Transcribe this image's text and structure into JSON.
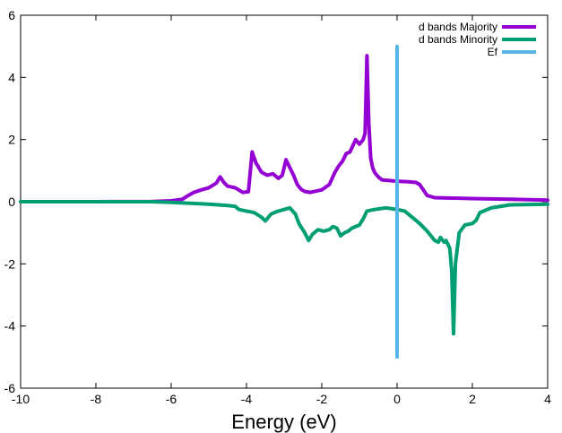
{
  "chart_data": {
    "type": "line",
    "title": "",
    "xlabel": "Energy (eV)",
    "ylabel": "",
    "xlim": [
      -10,
      4
    ],
    "ylim": [
      -6,
      6
    ],
    "x_ticks": [
      -10,
      -8,
      -6,
      -4,
      -2,
      0,
      2,
      4
    ],
    "y_ticks": [
      -6,
      -4,
      -2,
      0,
      2,
      4,
      6
    ],
    "grid": false,
    "legend_position": "top-right",
    "series": [
      {
        "name": "d bands Majority",
        "color": "#9400d3",
        "x": [
          -10,
          -8,
          -6.5,
          -6,
          -5.7,
          -5.55,
          -5.4,
          -5.2,
          -5.0,
          -4.8,
          -4.7,
          -4.6,
          -4.5,
          -4.3,
          -4.1,
          -3.95,
          -3.85,
          -3.75,
          -3.6,
          -3.45,
          -3.3,
          -3.15,
          -3.05,
          -2.95,
          -2.85,
          -2.75,
          -2.65,
          -2.55,
          -2.45,
          -2.3,
          -2.0,
          -1.8,
          -1.65,
          -1.55,
          -1.45,
          -1.35,
          -1.25,
          -1.1,
          -1.0,
          -0.9,
          -0.85,
          -0.8,
          -0.75,
          -0.7,
          -0.65,
          -0.6,
          -0.5,
          -0.4,
          -0.2,
          0,
          0.3,
          0.5,
          0.6,
          0.8,
          1.0,
          2.0,
          3.0,
          4.0
        ],
        "y": [
          0.0,
          0.0,
          0.01,
          0.03,
          0.08,
          0.2,
          0.3,
          0.38,
          0.45,
          0.6,
          0.8,
          0.62,
          0.5,
          0.45,
          0.3,
          0.32,
          1.6,
          1.25,
          0.95,
          0.85,
          0.9,
          0.75,
          0.85,
          1.35,
          1.1,
          0.85,
          0.55,
          0.4,
          0.33,
          0.3,
          0.38,
          0.55,
          0.95,
          1.15,
          1.3,
          1.55,
          1.6,
          2.0,
          1.85,
          2.0,
          2.2,
          4.7,
          2.5,
          1.4,
          1.1,
          0.95,
          0.8,
          0.7,
          0.68,
          0.66,
          0.64,
          0.62,
          0.55,
          0.2,
          0.13,
          0.1,
          0.08,
          0.05
        ]
      },
      {
        "name": "d bands Minority",
        "color": "#009e73",
        "x": [
          -10,
          -8,
          -6.5,
          -6,
          -5.5,
          -5.0,
          -4.5,
          -4.3,
          -4.2,
          -4.0,
          -3.8,
          -3.6,
          -3.5,
          -3.35,
          -3.2,
          -3.0,
          -2.85,
          -2.7,
          -2.6,
          -2.45,
          -2.35,
          -2.25,
          -2.1,
          -1.95,
          -1.8,
          -1.7,
          -1.6,
          -1.5,
          -1.4,
          -1.3,
          -1.2,
          -1.1,
          -1.0,
          -0.9,
          -0.8,
          -0.6,
          -0.3,
          0.0,
          0.2,
          0.4,
          0.6,
          0.8,
          1.0,
          1.1,
          1.15,
          1.25,
          1.3,
          1.4,
          1.45,
          1.5,
          1.55,
          1.65,
          1.8,
          2.0,
          2.1,
          2.2,
          2.5,
          3.0,
          4.0
        ],
        "y": [
          0.0,
          0.0,
          0.0,
          -0.02,
          -0.05,
          -0.08,
          -0.12,
          -0.15,
          -0.25,
          -0.3,
          -0.35,
          -0.5,
          -0.62,
          -0.4,
          -0.32,
          -0.25,
          -0.2,
          -0.4,
          -0.72,
          -1.0,
          -1.25,
          -1.05,
          -0.9,
          -0.95,
          -0.9,
          -0.8,
          -0.85,
          -1.1,
          -1.0,
          -0.95,
          -0.85,
          -0.8,
          -0.75,
          -0.55,
          -0.3,
          -0.25,
          -0.2,
          -0.25,
          -0.3,
          -0.5,
          -0.7,
          -0.95,
          -1.25,
          -1.3,
          -1.15,
          -1.3,
          -1.25,
          -1.5,
          -2.2,
          -4.25,
          -2.0,
          -1.0,
          -0.75,
          -0.7,
          -0.6,
          -0.35,
          -0.2,
          -0.1,
          -0.08
        ]
      },
      {
        "name": "Ef",
        "color": "#56b4e9",
        "x": [
          0,
          0
        ],
        "y": [
          -5,
          5
        ]
      }
    ]
  }
}
